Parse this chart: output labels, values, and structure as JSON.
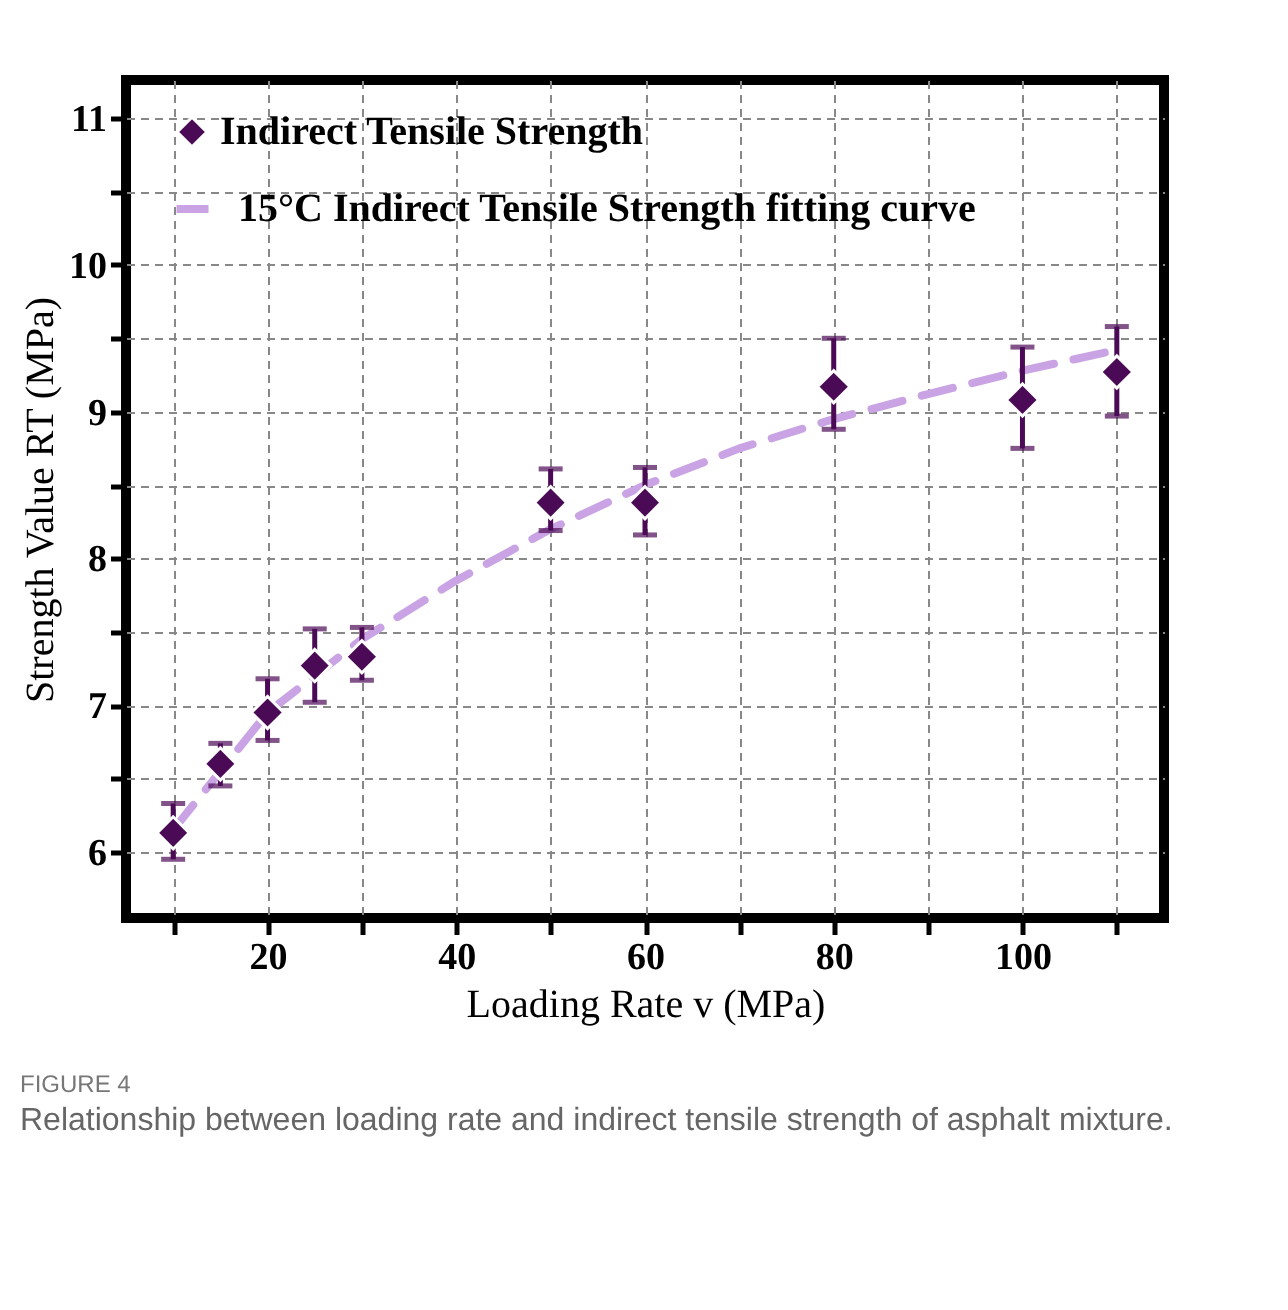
{
  "chart_data": {
    "type": "scatter",
    "xlabel": "Loading Rate v (MPa)",
    "ylabel": "Strength Value RT (MPa)",
    "annotations": [
      "FIGURE 4",
      "Relationship between loading rate and indirect tensile strength of asphalt mixture."
    ],
    "xlim": [
      5,
      115
    ],
    "ylim": [
      5.55,
      11.26
    ],
    "xticks": [
      {
        "value": 10,
        "label": null
      },
      20,
      {
        "value": 30,
        "label": null
      },
      40,
      {
        "value": 50,
        "label": null
      },
      60,
      {
        "value": 70,
        "label": null
      },
      80,
      {
        "value": 90,
        "label": null
      },
      100,
      {
        "value": 110,
        "label": null
      }
    ],
    "yticks": [
      6,
      {
        "value": 6.5,
        "label": null
      },
      7,
      {
        "value": 7.5,
        "label": null
      },
      8,
      {
        "value": 8.5,
        "label": null
      },
      9,
      {
        "value": 9.5,
        "label": null
      },
      10,
      {
        "value": 10.5,
        "label": null
      },
      11
    ],
    "grid": true,
    "legend": "top left",
    "series": [
      {
        "name": "Indirect Tensile Strength",
        "type": "scatter",
        "marker": "diamond",
        "color": "#4b0a55",
        "x": [
          10,
          15,
          20,
          25,
          30,
          50,
          60,
          80,
          100,
          110
        ],
        "values": [
          6.13,
          6.6,
          6.95,
          7.27,
          7.33,
          8.38,
          8.38,
          9.17,
          9.08,
          9.27
        ],
        "errors": [
          [
            5.95,
            6.33
          ],
          [
            6.45,
            6.74
          ],
          [
            6.76,
            7.18
          ],
          [
            7.02,
            7.52
          ],
          [
            7.17,
            7.53
          ],
          [
            8.19,
            8.61
          ],
          [
            8.16,
            8.62
          ],
          [
            8.88,
            9.5
          ],
          [
            8.75,
            9.44
          ],
          [
            8.97,
            9.58
          ]
        ]
      },
      {
        "name": "15°C Indirect Tensile Strength fitting curve",
        "type": "line",
        "line_style": "dashed",
        "marker": "none",
        "color": "#c9a3e3",
        "x": [
          10,
          15,
          20,
          30,
          40,
          50,
          60,
          70,
          80,
          90,
          100,
          110
        ],
        "values": [
          6.15,
          6.55,
          6.95,
          7.45,
          7.85,
          8.2,
          8.5,
          8.75,
          8.95,
          9.12,
          9.28,
          9.42
        ]
      }
    ]
  }
}
